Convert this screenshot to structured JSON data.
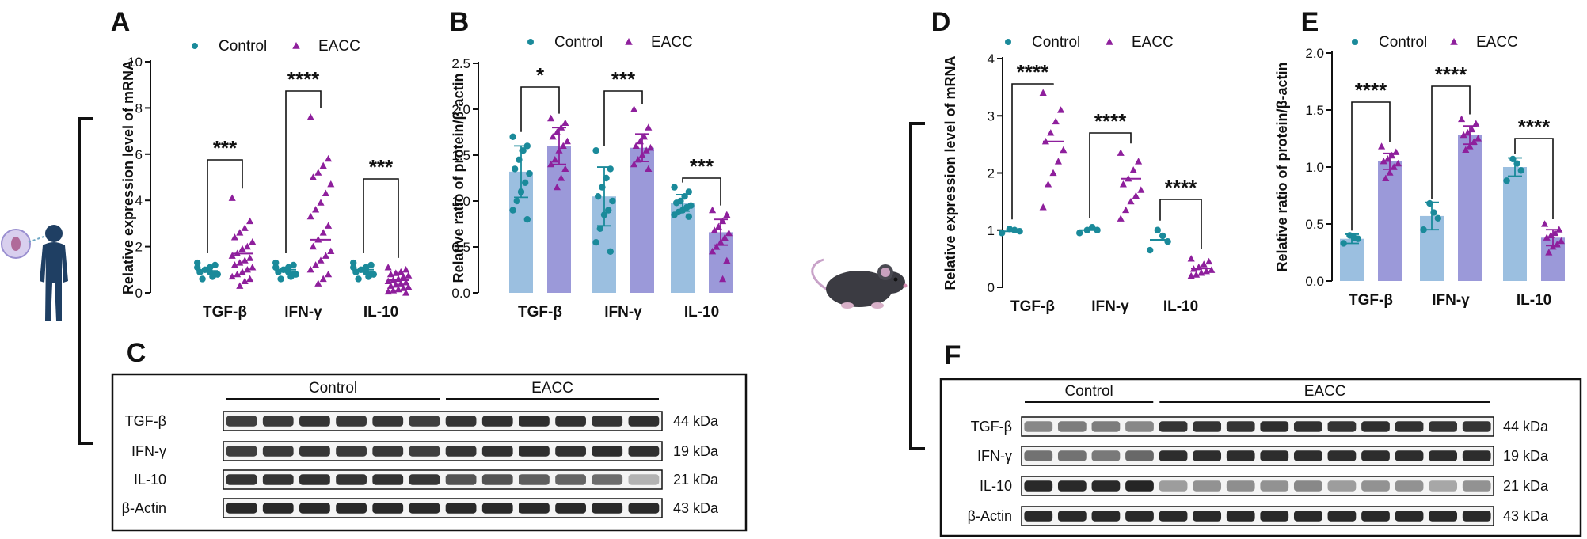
{
  "colors": {
    "control": "#1a8a9a",
    "eacc": "#8e1f9c",
    "bar_control": "#9bbfe0",
    "bar_eacc": "#9b99d9",
    "text": "#111111"
  },
  "icons": {
    "human": "human-silhouette-icon",
    "mouse": "mouse-icon"
  },
  "legend": {
    "control": "Control",
    "eacc": "EACC"
  },
  "chart_data": [
    {
      "id": "A",
      "panel": "A",
      "type": "scatter",
      "ylabel": "Relative expression level of mRNA",
      "ylim": [
        0,
        10
      ],
      "ticks": [
        "0",
        "2",
        "4",
        "6",
        "8",
        "10"
      ],
      "tick_values": [
        0,
        2,
        4,
        6,
        8,
        10
      ],
      "categories": [
        "TGF-β",
        "IFN-γ",
        "IL-10"
      ],
      "series": [
        {
          "name": "Control",
          "means": [
            0.95,
            1.0,
            1.0
          ],
          "points": [
            [
              1.3,
              1.2,
              1.1,
              1.0,
              0.9,
              0.8,
              0.7,
              1.0,
              0.6,
              1.1,
              0.8,
              0.9
            ],
            [
              1.3,
              1.2,
              1.1,
              1.0,
              0.9,
              0.8,
              0.7,
              1.0,
              0.6,
              1.1,
              0.8,
              0.9
            ],
            [
              1.3,
              1.2,
              1.1,
              1.0,
              0.9,
              0.8,
              0.7,
              1.0,
              0.6,
              1.1,
              0.8,
              0.9
            ]
          ]
        },
        {
          "name": "EACC",
          "means": [
            1.7,
            2.3,
            0.55
          ],
          "points": [
            [
              4.1,
              3.1,
              2.8,
              2.6,
              2.4,
              2.2,
              2.0,
              1.9,
              1.7,
              1.6,
              1.5,
              1.4,
              1.3,
              1.2,
              1.1,
              1.0,
              0.9,
              0.8,
              0.7,
              0.6,
              0.5,
              0.3
            ],
            [
              7.6,
              5.8,
              5.5,
              5.2,
              5.0,
              4.7,
              4.3,
              3.9,
              3.6,
              3.3,
              2.9,
              2.6,
              2.3,
              2.0,
              1.8,
              1.6,
              1.4,
              1.2,
              1.0,
              0.8,
              0.6,
              0.4
            ],
            [
              1.1,
              1.0,
              0.9,
              0.85,
              0.8,
              0.75,
              0.7,
              0.6,
              0.55,
              0.5,
              0.45,
              0.4,
              0.35,
              0.3,
              0.25,
              0.2,
              0.15,
              0.1,
              0.05,
              0.0
            ]
          ]
        }
      ],
      "significance": [
        "***",
        "****",
        "***"
      ]
    },
    {
      "id": "B",
      "panel": "B",
      "type": "bar",
      "ylabel": "Relative ratio of protein/β-actin",
      "ylim": [
        0,
        2.5
      ],
      "ticks": [
        "0.0",
        "0.5",
        "1.0",
        "1.5",
        "2.0",
        "2.5"
      ],
      "tick_values": [
        0,
        0.5,
        1.0,
        1.5,
        2.0,
        2.5
      ],
      "categories": [
        "TGF-β",
        "IFN-γ",
        "IL-10"
      ],
      "series": [
        {
          "name": "Control",
          "values": [
            1.32,
            1.05,
            0.98
          ],
          "errors": [
            0.28,
            0.32,
            0.09
          ],
          "points": [
            [
              1.7,
              1.6,
              1.55,
              1.45,
              1.35,
              1.3,
              1.2,
              1.1,
              1.0,
              0.9,
              0.8
            ],
            [
              1.55,
              1.35,
              1.25,
              1.15,
              1.05,
              1.0,
              0.9,
              0.85,
              0.7,
              0.55,
              0.45
            ],
            [
              1.15,
              1.1,
              1.05,
              1.0,
              0.98,
              0.95,
              0.93,
              0.9,
              0.88,
              0.85,
              0.83
            ]
          ]
        },
        {
          "name": "EACC",
          "values": [
            1.6,
            1.58,
            0.66
          ],
          "errors": [
            0.2,
            0.15,
            0.14
          ],
          "points": [
            [
              1.9,
              1.85,
              1.8,
              1.75,
              1.7,
              1.65,
              1.6,
              1.55,
              1.45,
              1.4,
              1.35,
              1.25,
              1.15
            ],
            [
              2.0,
              1.8,
              1.7,
              1.65,
              1.6,
              1.58,
              1.55,
              1.5,
              1.45,
              1.4,
              1.35
            ],
            [
              0.9,
              0.85,
              0.78,
              0.72,
              0.68,
              0.65,
              0.6,
              0.55,
              0.5,
              0.45,
              0.35,
              0.15
            ]
          ]
        }
      ],
      "significance": [
        "*",
        "***",
        "***"
      ]
    },
    {
      "id": "D",
      "panel": "D",
      "type": "scatter",
      "ylabel": "Relative expression level of mRNA",
      "ylim": [
        0,
        4
      ],
      "ticks": [
        "0",
        "1",
        "2",
        "3",
        "4"
      ],
      "tick_values": [
        0,
        1,
        2,
        3,
        4
      ],
      "categories": [
        "TGF-β",
        "IFN-γ",
        "IL-10"
      ],
      "series": [
        {
          "name": "Control",
          "means": [
            0.98,
            1.0,
            0.83
          ],
          "points": [
            [
              0.95,
              0.98,
              1.0,
              1.02
            ],
            [
              0.95,
              1.0,
              1.05,
              1.0
            ],
            [
              0.65,
              0.8,
              0.9,
              1.0
            ]
          ]
        },
        {
          "name": "EACC",
          "means": [
            2.55,
            1.9,
            0.33
          ],
          "points": [
            [
              3.4,
              3.1,
              2.9,
              2.7,
              2.55,
              2.4,
              2.2,
              2.0,
              1.8,
              1.4
            ],
            [
              2.35,
              2.2,
              2.05,
              1.9,
              1.8,
              1.7,
              1.6,
              1.5,
              1.35,
              1.2
            ],
            [
              0.5,
              0.45,
              0.4,
              0.35,
              0.32,
              0.3,
              0.28,
              0.25,
              0.22,
              0.2
            ]
          ]
        }
      ],
      "significance": [
        "****",
        "****",
        "****"
      ]
    },
    {
      "id": "E",
      "panel": "E",
      "type": "bar",
      "ylabel": "Relative ratio of protein/β-actin",
      "ylim": [
        0,
        2.0
      ],
      "ticks": [
        "0.0",
        "0.5",
        "1.0",
        "1.5",
        "2.0"
      ],
      "tick_values": [
        0,
        0.5,
        1.0,
        1.5,
        2.0
      ],
      "categories": [
        "TGF-β",
        "IFN-γ",
        "IL-10"
      ],
      "series": [
        {
          "name": "Control",
          "values": [
            0.37,
            0.57,
            1.0
          ],
          "errors": [
            0.04,
            0.12,
            0.08
          ],
          "points": [
            [
              0.33,
              0.37,
              0.38,
              0.4
            ],
            [
              0.45,
              0.55,
              0.6,
              0.68
            ],
            [
              0.88,
              0.97,
              1.03,
              1.07
            ]
          ]
        },
        {
          "name": "EACC",
          "values": [
            1.05,
            1.28,
            0.38
          ],
          "errors": [
            0.07,
            0.08,
            0.07
          ],
          "points": [
            [
              1.18,
              1.13,
              1.1,
              1.07,
              1.05,
              1.03,
              1.0,
              0.95,
              0.9
            ],
            [
              1.42,
              1.38,
              1.33,
              1.3,
              1.28,
              1.25,
              1.22,
              1.18,
              1.15
            ],
            [
              0.5,
              0.45,
              0.42,
              0.4,
              0.38,
              0.35,
              0.32,
              0.3,
              0.25
            ]
          ]
        }
      ],
      "significance": [
        "****",
        "****",
        "****"
      ]
    }
  ],
  "blots": [
    {
      "panel": "C",
      "groups": [
        "Control",
        "EACC"
      ],
      "group_lanes": [
        6,
        6
      ],
      "rows": [
        {
          "name": "TGF-β",
          "kda": "44 kDa",
          "intensity": [
            0.8,
            0.82,
            0.85,
            0.83,
            0.84,
            0.8,
            0.85,
            0.86,
            0.88,
            0.86,
            0.85,
            0.87
          ]
        },
        {
          "name": "IFN-γ",
          "kda": "19 kDa",
          "intensity": [
            0.8,
            0.82,
            0.84,
            0.82,
            0.83,
            0.8,
            0.85,
            0.86,
            0.87,
            0.86,
            0.88,
            0.87
          ]
        },
        {
          "name": "IL-10",
          "kda": "21 kDa",
          "intensity": [
            0.85,
            0.85,
            0.86,
            0.85,
            0.86,
            0.84,
            0.7,
            0.7,
            0.65,
            0.62,
            0.58,
            0.25
          ]
        },
        {
          "name": "β-Actin",
          "kda": "43 kDa",
          "intensity": [
            0.9,
            0.9,
            0.9,
            0.9,
            0.9,
            0.9,
            0.9,
            0.9,
            0.9,
            0.9,
            0.9,
            0.9
          ]
        }
      ]
    },
    {
      "panel": "F",
      "groups": [
        "Control",
        "EACC"
      ],
      "group_lanes": [
        4,
        10
      ],
      "rows": [
        {
          "name": "TGF-β",
          "kda": "44 kDa",
          "intensity": [
            0.45,
            0.5,
            0.5,
            0.45,
            0.85,
            0.85,
            0.85,
            0.88,
            0.86,
            0.85,
            0.87,
            0.86,
            0.85,
            0.85
          ]
        },
        {
          "name": "IFN-γ",
          "kda": "19 kDa",
          "intensity": [
            0.55,
            0.55,
            0.52,
            0.6,
            0.88,
            0.88,
            0.88,
            0.88,
            0.88,
            0.88,
            0.88,
            0.88,
            0.88,
            0.88
          ]
        },
        {
          "name": "IL-10",
          "kda": "21 kDa",
          "intensity": [
            0.9,
            0.9,
            0.9,
            0.92,
            0.35,
            0.4,
            0.42,
            0.4,
            0.45,
            0.35,
            0.4,
            0.4,
            0.3,
            0.4
          ]
        },
        {
          "name": "β-Actin",
          "kda": "43 kDa",
          "intensity": [
            0.9,
            0.9,
            0.9,
            0.9,
            0.9,
            0.9,
            0.9,
            0.9,
            0.9,
            0.9,
            0.9,
            0.9,
            0.9,
            0.9
          ]
        }
      ]
    }
  ]
}
